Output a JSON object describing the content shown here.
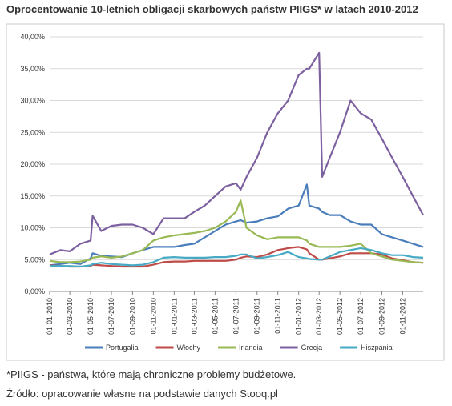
{
  "chart_data": {
    "type": "line",
    "title": "Oprocentowanie 10-letnich obligacji skarbowych państw PIIGS* w latach 2010-2012",
    "notes": [
      "*PIIGS - państwa, które mają chroniczne problemy budżetowe.",
      "Źródło: opracowanie własne na podstawie danych Stooq.pl"
    ],
    "x": [
      "01-01-2010",
      "01-02-2010",
      "01-03-2010",
      "01-04-2010",
      "01-05-2010",
      "07-05-2010",
      "01-06-2010",
      "01-07-2010",
      "01-08-2010",
      "01-09-2010",
      "01-10-2010",
      "01-11-2010",
      "01-12-2010",
      "01-01-2011",
      "01-02-2011",
      "01-03-2011",
      "01-04-2011",
      "01-05-2011",
      "01-06-2011",
      "01-07-2011",
      "15-07-2011",
      "01-08-2011",
      "01-09-2011",
      "01-10-2011",
      "01-11-2011",
      "01-12-2011",
      "01-01-2012",
      "25-01-2012",
      "01-02-2012",
      "01-03-2012",
      "10-03-2012",
      "01-04-2012",
      "01-05-2012",
      "01-06-2012",
      "01-07-2012",
      "01-08-2012",
      "01-09-2012",
      "01-10-2012",
      "01-11-2012",
      "01-12-2012",
      "31-12-2012"
    ],
    "xlim": [
      "01-01-2010",
      "31-12-2012"
    ],
    "xticks": [
      "01-01-2010",
      "01-03-2010",
      "01-05-2010",
      "01-07-2010",
      "01-09-2010",
      "01-11-2010",
      "01-01-2011",
      "01-03-2011",
      "01-05-2011",
      "01-07-2011",
      "01-09-2011",
      "01-11-2011",
      "01-01-2012",
      "01-03-2012",
      "01-05-2012",
      "01-07-2012",
      "01-09-2012",
      "01-11-2012"
    ],
    "ylim": [
      0,
      40
    ],
    "yticks": [
      {
        "value": 0,
        "label": "0,00%"
      },
      {
        "value": 5,
        "label": "5,00%"
      },
      {
        "value": 10,
        "label": "10,00%"
      },
      {
        "value": 15,
        "label": "15,00%"
      },
      {
        "value": 20,
        "label": "20,00%"
      },
      {
        "value": 25,
        "label": "25,00%"
      },
      {
        "value": 30,
        "label": "30,00%"
      },
      {
        "value": 35,
        "label": "35,00%"
      },
      {
        "value": 40,
        "label": "40,00%"
      }
    ],
    "grid": true,
    "legend": "bottom",
    "series": [
      {
        "name": "Portugalia",
        "color": "#4a7ebb",
        "values": [
          4.1,
          4.3,
          4.5,
          4.3,
          5.2,
          6.0,
          5.6,
          5.5,
          5.4,
          6.0,
          6.5,
          7.0,
          7.0,
          7.0,
          7.3,
          7.5,
          8.5,
          9.5,
          10.5,
          11.0,
          11.2,
          10.8,
          11.0,
          11.5,
          11.8,
          13.0,
          13.5,
          16.8,
          13.5,
          13.0,
          12.5,
          12.0,
          12.0,
          11.0,
          10.5,
          10.5,
          9.0,
          8.5,
          8.0,
          7.5,
          7.0
        ]
      },
      {
        "name": "Włochy",
        "color": "#be4b48",
        "values": [
          4.1,
          4.0,
          3.9,
          3.9,
          4.0,
          4.2,
          4.1,
          4.0,
          3.9,
          3.9,
          3.9,
          4.2,
          4.6,
          4.7,
          4.7,
          4.8,
          4.8,
          4.8,
          4.8,
          5.0,
          5.3,
          5.5,
          5.4,
          5.8,
          6.5,
          6.8,
          7.0,
          6.6,
          6.0,
          5.0,
          5.0,
          5.2,
          5.5,
          6.0,
          6.0,
          6.0,
          5.8,
          5.2,
          4.9,
          4.6,
          4.5
        ]
      },
      {
        "name": "Irlandia",
        "color": "#98b954",
        "values": [
          4.8,
          4.6,
          4.6,
          4.7,
          5.0,
          5.3,
          5.5,
          5.3,
          5.5,
          6.0,
          6.5,
          8.0,
          8.5,
          8.8,
          9.0,
          9.2,
          9.5,
          10.0,
          11.0,
          12.5,
          14.3,
          10.0,
          8.8,
          8.2,
          8.5,
          8.5,
          8.5,
          8.0,
          7.5,
          7.0,
          7.0,
          7.0,
          7.0,
          7.2,
          7.5,
          6.0,
          5.5,
          5.0,
          4.8,
          4.6,
          4.5
        ]
      },
      {
        "name": "Grecja",
        "color": "#7d60a0",
        "values": [
          5.8,
          6.5,
          6.3,
          7.5,
          8.0,
          11.9,
          9.5,
          10.3,
          10.5,
          10.5,
          10.0,
          9.0,
          11.5,
          11.5,
          11.5,
          12.5,
          13.5,
          15.0,
          16.5,
          17.0,
          16.0,
          18.0,
          21,
          25,
          28,
          30,
          34,
          35,
          35,
          37.5,
          18,
          21,
          25,
          30,
          28,
          27,
          24,
          21,
          18,
          15,
          12
        ]
      },
      {
        "name": "Hiszpania",
        "color": "#46aac5",
        "values": [
          4.0,
          4.0,
          4.0,
          3.9,
          4.1,
          4.3,
          4.5,
          4.3,
          4.2,
          4.1,
          4.2,
          4.6,
          5.3,
          5.4,
          5.3,
          5.3,
          5.3,
          5.4,
          5.4,
          5.6,
          5.8,
          5.8,
          5.2,
          5.4,
          5.7,
          6.2,
          5.4,
          5.2,
          5.1,
          5.0,
          5.0,
          5.5,
          6.2,
          6.5,
          6.8,
          6.5,
          6.0,
          5.7,
          5.7,
          5.4,
          5.3
        ]
      }
    ]
  }
}
